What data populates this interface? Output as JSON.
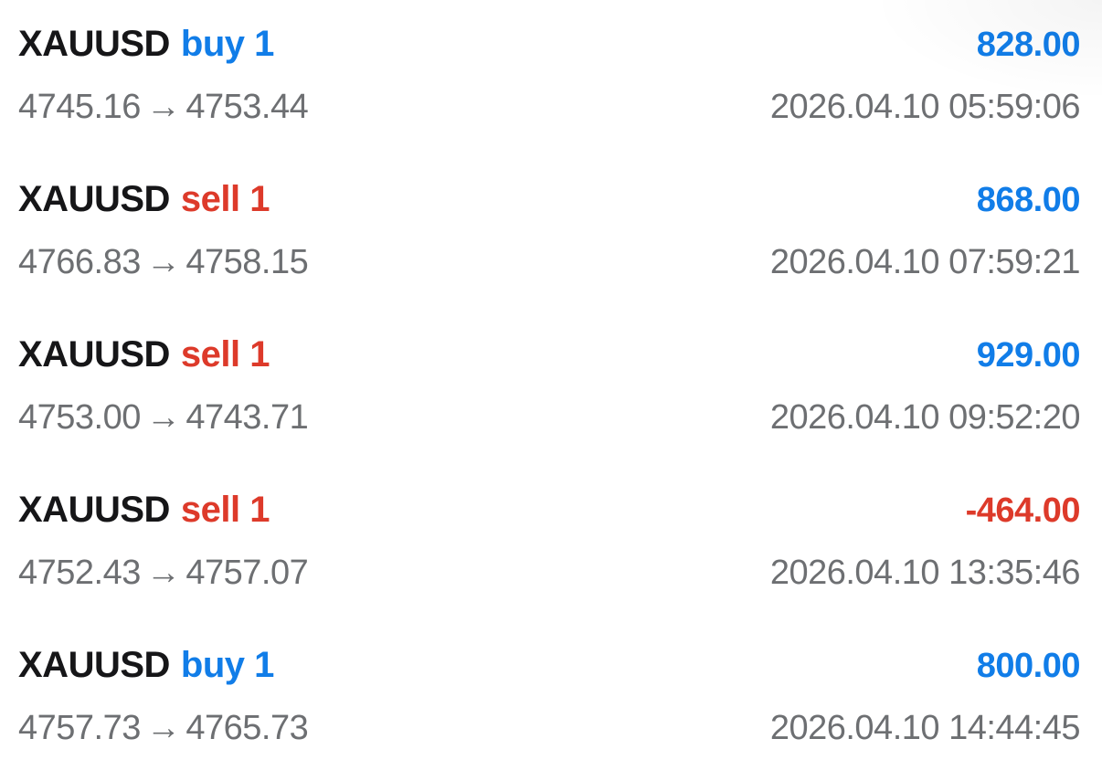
{
  "colors": {
    "buy_blue": "#117de8",
    "sell_red": "#dd3a2a",
    "text_gray": "#6d6f72",
    "symbol_black": "#161618"
  },
  "icons": {
    "arrow_right_glyph": "→"
  },
  "history": {
    "rows": [
      {
        "symbol": "XAUUSD",
        "side": "buy",
        "volume": "buy 1",
        "open_price": "4745.16",
        "close_price": "4753.44",
        "profit": "828.00",
        "time": "2026.04.10 05:59:06"
      },
      {
        "symbol": "XAUUSD",
        "side": "sell",
        "volume": "sell 1",
        "open_price": "4766.83",
        "close_price": "4758.15",
        "profit": "868.00",
        "time": "2026.04.10 07:59:21"
      },
      {
        "symbol": "XAUUSD",
        "side": "sell",
        "volume": "sell 1",
        "open_price": "4753.00",
        "close_price": "4743.71",
        "profit": "929.00",
        "time": "2026.04.10 09:52:20"
      },
      {
        "symbol": "XAUUSD",
        "side": "sell",
        "volume": "sell 1",
        "open_price": "4752.43",
        "close_price": "4757.07",
        "profit": "-464.00",
        "time": "2026.04.10 13:35:46"
      },
      {
        "symbol": "XAUUSD",
        "side": "buy",
        "volume": "buy 1",
        "open_price": "4757.73",
        "close_price": "4765.73",
        "profit": "800.00",
        "time": "2026.04.10 14:44:45"
      }
    ]
  }
}
